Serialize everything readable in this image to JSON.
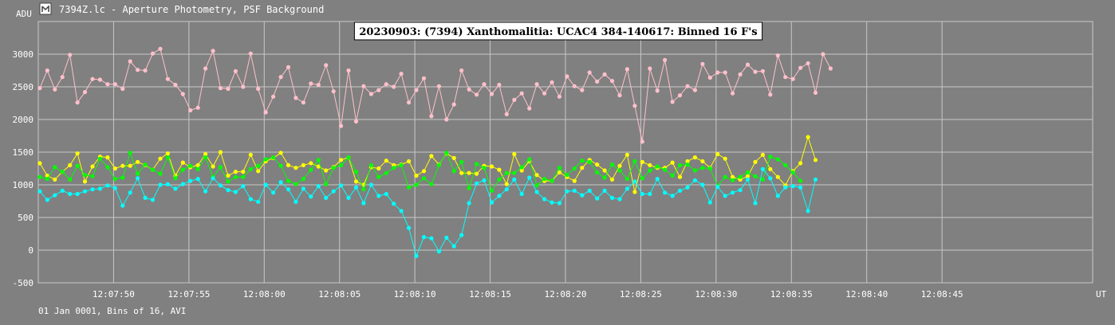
{
  "window": {
    "title": "7394Z.lc - Aperture Photometry, PSF Background",
    "icon": "lightcurve-app-icon"
  },
  "footer": {
    "info": "01 Jan 0001, Bins of 16, AVI"
  },
  "chart_data": {
    "type": "line",
    "title": "20230903: (7394) Xanthomalitia: UCAC4 384-140617: Binned 16 F's",
    "ylabel": "ADU",
    "xlabel": "UT",
    "ylim": [
      -500,
      3500
    ],
    "xlim": [
      "12:07:45",
      "12:08:55"
    ],
    "grid": true,
    "yticks": [
      -500,
      0,
      500,
      1000,
      1500,
      2000,
      2500,
      3000
    ],
    "xticks": [
      "12:07:50",
      "12:07:55",
      "12:08:00",
      "12:08:05",
      "12:08:10",
      "12:08:15",
      "12:08:20",
      "12:08:25",
      "12:08:30",
      "12:08:35",
      "12:08:40",
      "12:08:45"
    ],
    "x_start": "12:07:45.1",
    "x_step_seconds": 0.5,
    "series": [
      {
        "color": "#ffc0cb",
        "values": [
          2480,
          2750,
          2460,
          2650,
          2990,
          2260,
          2420,
          2620,
          2610,
          2540,
          2540,
          2470,
          2890,
          2760,
          2750,
          3010,
          3080,
          2620,
          2530,
          2390,
          2140,
          2180,
          2780,
          3050,
          2480,
          2470,
          2740,
          2500,
          3010,
          2470,
          2110,
          2350,
          2650,
          2800,
          2330,
          2260,
          2550,
          2530,
          2830,
          2430,
          1900,
          2750,
          1970,
          2510,
          2390,
          2450,
          2540,
          2500,
          2700,
          2260,
          2450,
          2630,
          2050,
          2510,
          2000,
          2230,
          2750,
          2460,
          2380,
          2540,
          2390,
          2530,
          2080,
          2300,
          2400,
          2170,
          2540,
          2400,
          2570,
          2350,
          2660,
          2510,
          2450,
          2720,
          2580,
          2690,
          2590,
          2370,
          2770,
          2210,
          1660,
          2780,
          2440,
          2910,
          2270,
          2370,
          2510,
          2450,
          2850,
          2640,
          2720,
          2720,
          2400,
          2690,
          2840,
          2730,
          2740,
          2380,
          2980,
          2650,
          2620,
          2790,
          2860,
          2410,
          3000,
          2780
        ]
      },
      {
        "color": "#ffff00",
        "values": [
          1330,
          1140,
          1080,
          1200,
          1300,
          1480,
          1050,
          1280,
          1430,
          1420,
          1250,
          1290,
          1290,
          1350,
          1300,
          1230,
          1400,
          1480,
          1140,
          1340,
          1270,
          1300,
          1470,
          1280,
          1500,
          1140,
          1200,
          1200,
          1460,
          1210,
          1360,
          1410,
          1490,
          1300,
          1260,
          1300,
          1330,
          1280,
          1220,
          1270,
          1380,
          1420,
          1050,
          1000,
          1270,
          1250,
          1370,
          1300,
          1310,
          1360,
          1140,
          1210,
          1440,
          1310,
          1480,
          1410,
          1180,
          1180,
          1170,
          1290,
          1280,
          1230,
          1010,
          1470,
          1220,
          1360,
          1150,
          1060,
          1060,
          1190,
          1120,
          1060,
          1260,
          1380,
          1310,
          1220,
          1080,
          1290,
          1460,
          890,
          1350,
          1300,
          1260,
          1260,
          1340,
          1120,
          1360,
          1420,
          1360,
          1260,
          1470,
          1400,
          1120,
          1080,
          1130,
          1350,
          1460,
          1240,
          1120,
          990,
          1210,
          1330,
          1730,
          1380
        ]
      },
      {
        "color": "#00ff00",
        "values": [
          1120,
          1090,
          1270,
          1200,
          1080,
          1290,
          1150,
          1130,
          1400,
          1270,
          1090,
          1110,
          1490,
          1170,
          1310,
          1230,
          1170,
          1420,
          1100,
          1230,
          1290,
          1240,
          1420,
          1120,
          1270,
          1050,
          1120,
          1120,
          1240,
          1290,
          1390,
          1420,
          1290,
          1060,
          1010,
          1090,
          1230,
          1380,
          1010,
          1260,
          1300,
          1420,
          1200,
          930,
          1300,
          1120,
          1180,
          1260,
          1300,
          960,
          1000,
          1100,
          1010,
          1300,
          1490,
          1210,
          1350,
          950,
          1320,
          1260,
          910,
          1080,
          1180,
          1180,
          1270,
          1390,
          990,
          1090,
          1060,
          1260,
          1150,
          1250,
          1370,
          1350,
          1190,
          1110,
          1310,
          1220,
          1090,
          1360,
          1100,
          1220,
          1280,
          1230,
          1140,
          1300,
          1310,
          1220,
          1260,
          1250,
          980,
          1120,
          1070,
          1120,
          1190,
          1130,
          1080,
          1430,
          1390,
          1300,
          1190,
          1060
        ]
      },
      {
        "color": "#00ffff",
        "values": [
          900,
          770,
          840,
          910,
          860,
          860,
          900,
          930,
          940,
          990,
          950,
          680,
          880,
          1100,
          800,
          770,
          1000,
          1010,
          940,
          1010,
          1060,
          1090,
          900,
          1100,
          990,
          920,
          890,
          980,
          780,
          740,
          1000,
          880,
          1040,
          930,
          740,
          940,
          820,
          980,
          800,
          900,
          990,
          800,
          960,
          720,
          1000,
          830,
          860,
          710,
          600,
          340,
          -90,
          200,
          180,
          -20,
          190,
          60,
          230,
          720,
          1020,
          1070,
          730,
          830,
          930,
          1080,
          860,
          1110,
          890,
          780,
          730,
          720,
          900,
          910,
          840,
          910,
          790,
          910,
          800,
          780,
          940,
          1050,
          860,
          860,
          1090,
          880,
          830,
          910,
          960,
          1070,
          1000,
          730,
          970,
          830,
          880,
          920,
          1080,
          720,
          1240,
          1100,
          830,
          960,
          980,
          960,
          600,
          1080
        ]
      }
    ]
  }
}
